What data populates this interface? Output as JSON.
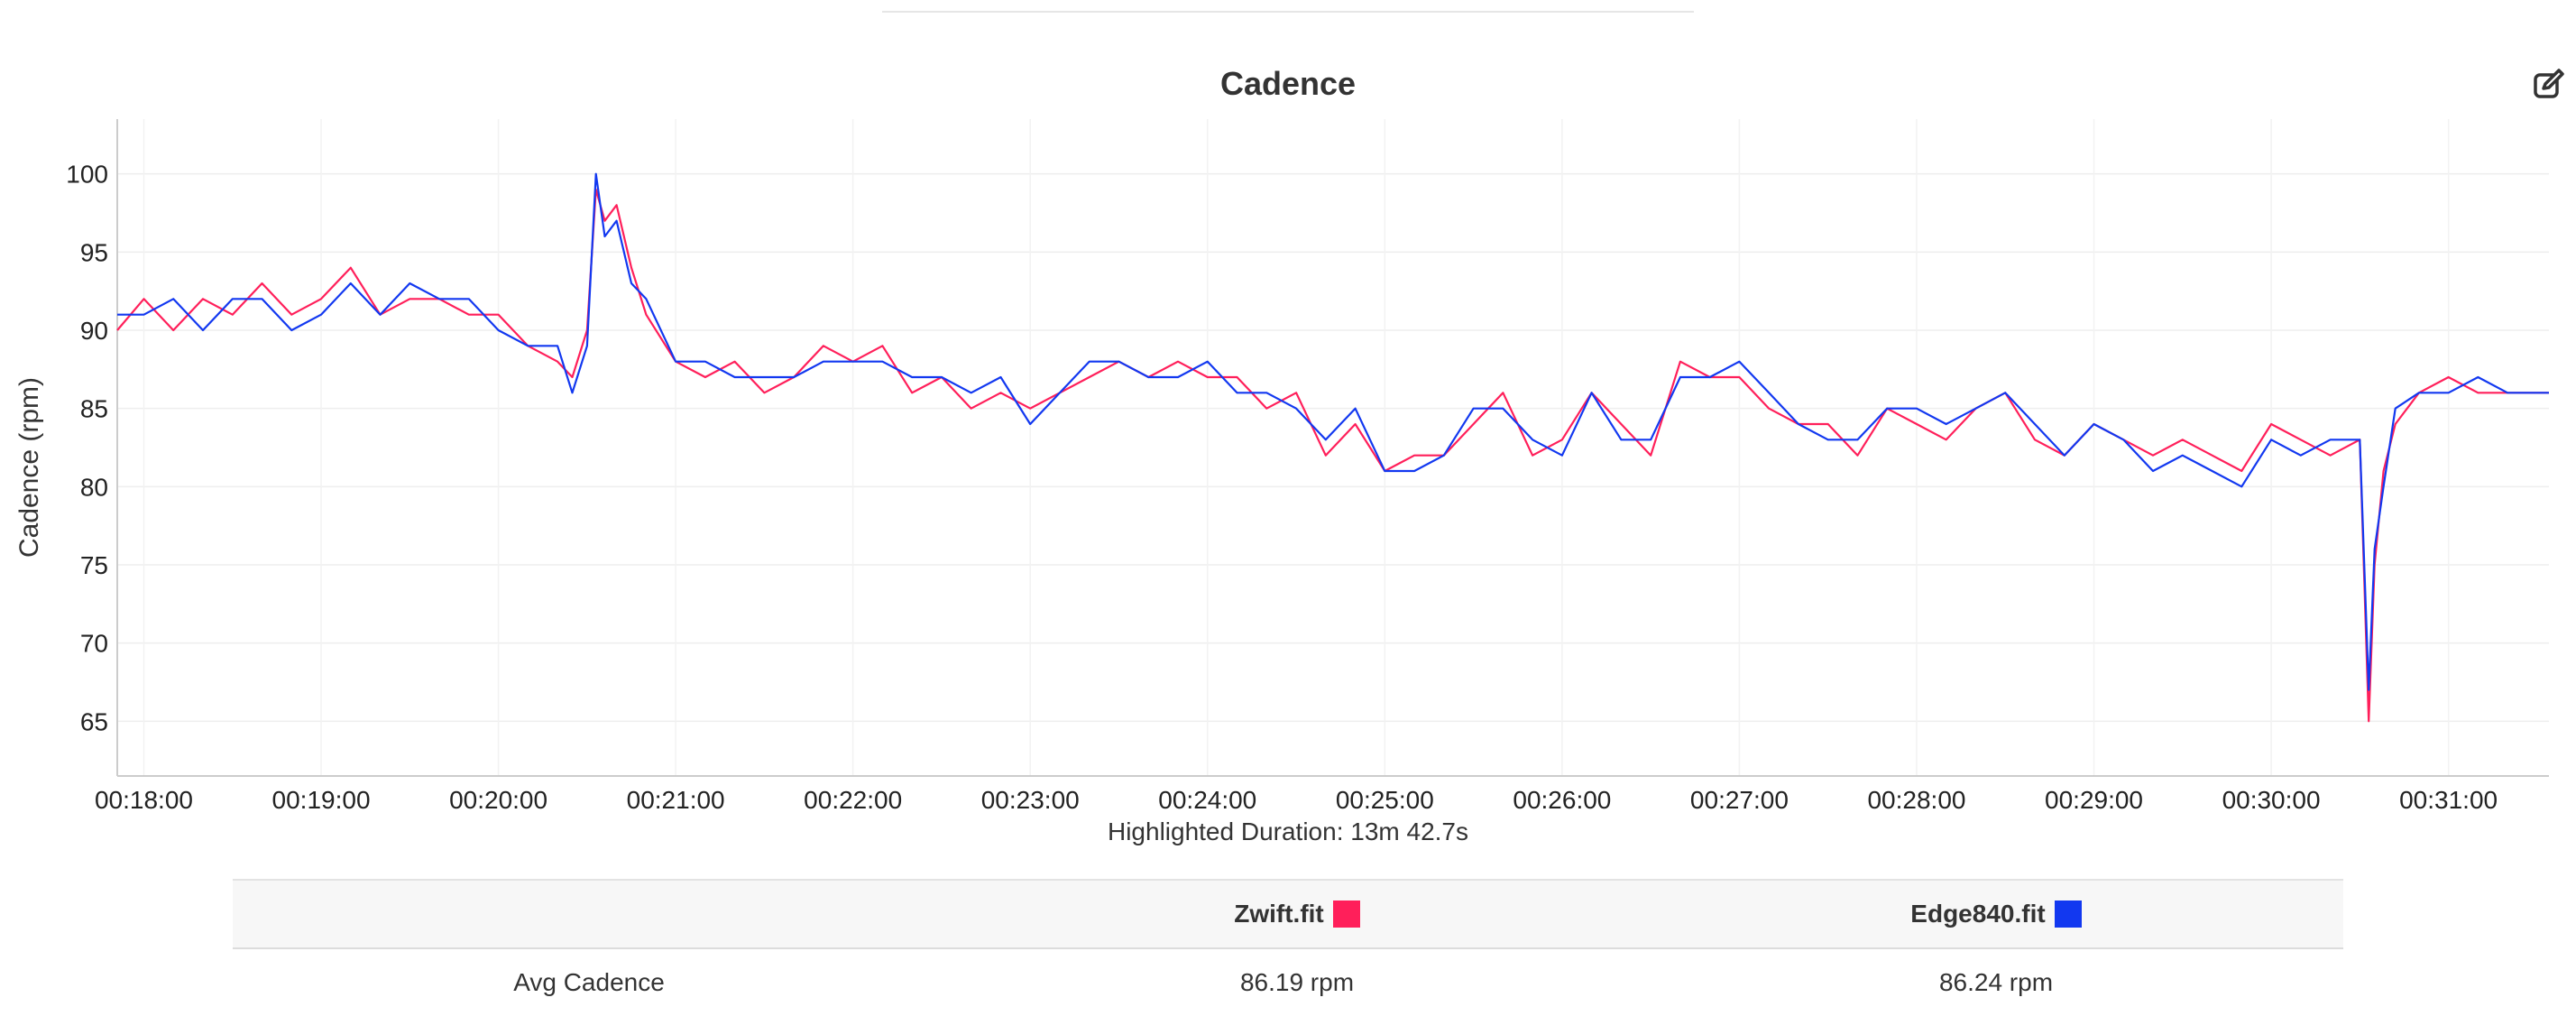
{
  "title": "Cadence",
  "edit_icon": "edit-icon",
  "highlighted_duration": "Highlighted Duration: 13m 42.7s",
  "colors": {
    "zwift": "#ff1f5a",
    "edge840": "#1238f0"
  },
  "stats_table": {
    "header": [
      {
        "file": "Zwift.fit",
        "color": "#ff1f5a"
      },
      {
        "file": "Edge840.fit",
        "color": "#1238f0"
      }
    ],
    "rows": [
      {
        "metric": "Avg Cadence",
        "values": [
          "86.19 rpm",
          "86.24 rpm"
        ]
      }
    ]
  },
  "chart_data": {
    "type": "line",
    "title": "Cadence",
    "xlabel": "",
    "ylabel": "Cadence (rpm)",
    "ylim": [
      61.5,
      103.5
    ],
    "xlim": [
      "00:17:51",
      "00:31:34"
    ],
    "y_ticks": [
      65,
      70,
      75,
      80,
      85,
      90,
      95,
      100
    ],
    "x_ticks": [
      "00:18:00",
      "00:19:00",
      "00:20:00",
      "00:21:00",
      "00:22:00",
      "00:23:00",
      "00:24:00",
      "00:25:00",
      "00:26:00",
      "00:27:00",
      "00:28:00",
      "00:29:00",
      "00:30:00",
      "00:31:00"
    ],
    "grid": true,
    "series": [
      {
        "name": "Zwift.fit",
        "color": "#ff1f5a",
        "x": [
          "00:17:51",
          "00:18:00",
          "00:18:10",
          "00:18:20",
          "00:18:30",
          "00:18:40",
          "00:18:50",
          "00:19:00",
          "00:19:10",
          "00:19:20",
          "00:19:30",
          "00:19:40",
          "00:19:50",
          "00:20:00",
          "00:20:10",
          "00:20:20",
          "00:20:25",
          "00:20:30",
          "00:20:33",
          "00:20:36",
          "00:20:40",
          "00:20:45",
          "00:20:50",
          "00:21:00",
          "00:21:10",
          "00:21:20",
          "00:21:30",
          "00:21:40",
          "00:21:50",
          "00:22:00",
          "00:22:10",
          "00:22:20",
          "00:22:30",
          "00:22:40",
          "00:22:50",
          "00:23:00",
          "00:23:10",
          "00:23:20",
          "00:23:30",
          "00:23:40",
          "00:23:50",
          "00:24:00",
          "00:24:10",
          "00:24:20",
          "00:24:30",
          "00:24:40",
          "00:24:50",
          "00:25:00",
          "00:25:10",
          "00:25:20",
          "00:25:30",
          "00:25:40",
          "00:25:50",
          "00:26:00",
          "00:26:10",
          "00:26:20",
          "00:26:30",
          "00:26:40",
          "00:26:50",
          "00:27:00",
          "00:27:10",
          "00:27:20",
          "00:27:30",
          "00:27:40",
          "00:27:50",
          "00:28:00",
          "00:28:10",
          "00:28:20",
          "00:28:30",
          "00:28:40",
          "00:28:50",
          "00:29:00",
          "00:29:10",
          "00:29:20",
          "00:29:30",
          "00:29:40",
          "00:29:50",
          "00:30:00",
          "00:30:10",
          "00:30:20",
          "00:30:30",
          "00:30:33",
          "00:30:35",
          "00:30:38",
          "00:30:42",
          "00:30:50",
          "00:31:00",
          "00:31:10",
          "00:31:20",
          "00:31:34"
        ],
        "y": [
          90,
          92,
          90,
          92,
          91,
          93,
          91,
          92,
          94,
          91,
          92,
          92,
          91,
          91,
          89,
          88,
          87,
          90,
          99,
          97,
          98,
          94,
          91,
          88,
          87,
          88,
          86,
          87,
          89,
          88,
          89,
          86,
          87,
          85,
          86,
          85,
          86,
          87,
          88,
          87,
          88,
          87,
          87,
          85,
          86,
          82,
          84,
          81,
          82,
          82,
          84,
          86,
          82,
          83,
          86,
          84,
          82,
          88,
          87,
          87,
          85,
          84,
          84,
          82,
          85,
          84,
          83,
          85,
          86,
          83,
          82,
          84,
          83,
          82,
          83,
          82,
          81,
          84,
          83,
          82,
          83,
          65,
          75,
          81,
          84,
          86,
          87,
          86,
          86,
          86
        ]
      },
      {
        "name": "Edge840.fit",
        "color": "#1238f0",
        "x": [
          "00:17:51",
          "00:18:00",
          "00:18:10",
          "00:18:20",
          "00:18:30",
          "00:18:40",
          "00:18:50",
          "00:19:00",
          "00:19:10",
          "00:19:20",
          "00:19:30",
          "00:19:40",
          "00:19:50",
          "00:20:00",
          "00:20:10",
          "00:20:20",
          "00:20:25",
          "00:20:30",
          "00:20:33",
          "00:20:36",
          "00:20:40",
          "00:20:45",
          "00:20:50",
          "00:21:00",
          "00:21:10",
          "00:21:20",
          "00:21:30",
          "00:21:40",
          "00:21:50",
          "00:22:00",
          "00:22:10",
          "00:22:20",
          "00:22:30",
          "00:22:40",
          "00:22:50",
          "00:23:00",
          "00:23:10",
          "00:23:20",
          "00:23:30",
          "00:23:40",
          "00:23:50",
          "00:24:00",
          "00:24:10",
          "00:24:20",
          "00:24:30",
          "00:24:40",
          "00:24:50",
          "00:25:00",
          "00:25:10",
          "00:25:20",
          "00:25:30",
          "00:25:40",
          "00:25:50",
          "00:26:00",
          "00:26:10",
          "00:26:20",
          "00:26:30",
          "00:26:40",
          "00:26:50",
          "00:27:00",
          "00:27:10",
          "00:27:20",
          "00:27:30",
          "00:27:40",
          "00:27:50",
          "00:28:00",
          "00:28:10",
          "00:28:20",
          "00:28:30",
          "00:28:40",
          "00:28:50",
          "00:29:00",
          "00:29:10",
          "00:29:20",
          "00:29:30",
          "00:29:40",
          "00:29:50",
          "00:30:00",
          "00:30:10",
          "00:30:20",
          "00:30:30",
          "00:30:33",
          "00:30:35",
          "00:30:38",
          "00:30:42",
          "00:30:50",
          "00:31:00",
          "00:31:10",
          "00:31:20",
          "00:31:34"
        ],
        "y": [
          91,
          91,
          92,
          90,
          92,
          92,
          90,
          91,
          93,
          91,
          93,
          92,
          92,
          90,
          89,
          89,
          86,
          89,
          100,
          96,
          97,
          93,
          92,
          88,
          88,
          87,
          87,
          87,
          88,
          88,
          88,
          87,
          87,
          86,
          87,
          84,
          86,
          88,
          88,
          87,
          87,
          88,
          86,
          86,
          85,
          83,
          85,
          81,
          81,
          82,
          85,
          85,
          83,
          82,
          86,
          83,
          83,
          87,
          87,
          88,
          86,
          84,
          83,
          83,
          85,
          85,
          84,
          85,
          86,
          84,
          82,
          84,
          83,
          81,
          82,
          81,
          80,
          83,
          82,
          83,
          83,
          67,
          76,
          80,
          85,
          86,
          86,
          87,
          86,
          86
        ]
      }
    ]
  }
}
